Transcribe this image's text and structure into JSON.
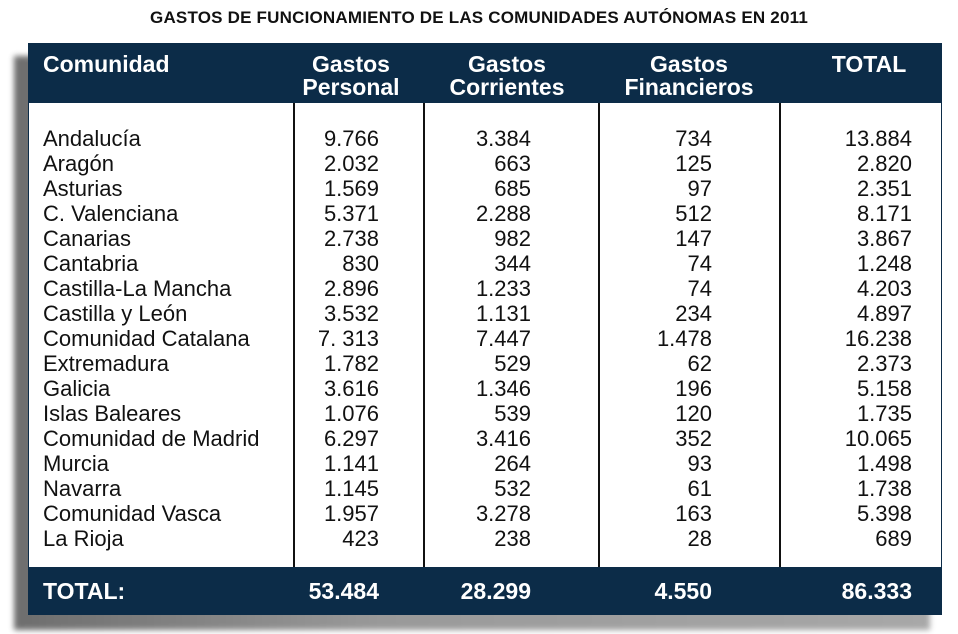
{
  "title": "GASTOS DE FUNCIONAMIENTO DE LAS COMUNIDADES AUTÓNOMAS EN 2011",
  "headers": {
    "comunidad": "Comunidad",
    "personal_1": "Gastos",
    "personal_2": "Personal",
    "corrientes_1": "Gastos",
    "corrientes_2": "Corrientes",
    "financieros_1": "Gastos",
    "financieros_2": "Financieros",
    "total": "TOTAL"
  },
  "rows": [
    {
      "name": "Andalucía",
      "personal": "9.766",
      "corrientes": "3.384",
      "financieros": "734",
      "total": "13.884"
    },
    {
      "name": "Aragón",
      "personal": "2.032",
      "corrientes": "663",
      "financieros": "125",
      "total": "2.820"
    },
    {
      "name": "Asturias",
      "personal": "1.569",
      "corrientes": "685",
      "financieros": "97",
      "total": "2.351"
    },
    {
      "name": "C. Valenciana",
      "personal": "5.371",
      "corrientes": "2.288",
      "financieros": "512",
      "total": "8.171"
    },
    {
      "name": "Canarias",
      "personal": "2.738",
      "corrientes": "982",
      "financieros": "147",
      "total": "3.867"
    },
    {
      "name": "Cantabria",
      "personal": "830",
      "corrientes": "344",
      "financieros": "74",
      "total": "1.248"
    },
    {
      "name": "Castilla-La Mancha",
      "personal": "2.896",
      "corrientes": "1.233",
      "financieros": "74",
      "total": "4.203"
    },
    {
      "name": "Castilla y León",
      "personal": "3.532",
      "corrientes": "1.131",
      "financieros": "234",
      "total": "4.897"
    },
    {
      "name": "Comunidad Catalana",
      "personal": "7. 313",
      "corrientes": "7.447",
      "financieros": "1.478",
      "total": "16.238"
    },
    {
      "name": "Extremadura",
      "personal": "1.782",
      "corrientes": "529",
      "financieros": "62",
      "total": "2.373"
    },
    {
      "name": "Galicia",
      "personal": "3.616",
      "corrientes": "1.346",
      "financieros": "196",
      "total": "5.158"
    },
    {
      "name": "Islas Baleares",
      "personal": "1.076",
      "corrientes": "539",
      "financieros": "120",
      "total": "1.735"
    },
    {
      "name": "Comunidad de Madrid",
      "personal": "6.297",
      "corrientes": "3.416",
      "financieros": "352",
      "total": "10.065"
    },
    {
      "name": "Murcia",
      "personal": "1.141",
      "corrientes": "264",
      "financieros": "93",
      "total": "1.498"
    },
    {
      "name": "Navarra",
      "personal": "1.145",
      "corrientes": "532",
      "financieros": "61",
      "total": "1.738"
    },
    {
      "name": "Comunidad Vasca",
      "personal": "1.957",
      "corrientes": "3.278",
      "financieros": "163",
      "total": "5.398"
    },
    {
      "name": "La Rioja",
      "personal": "423",
      "corrientes": "238",
      "financieros": "28",
      "total": "689"
    }
  ],
  "footer": {
    "label": "TOTAL:",
    "personal": "53.484",
    "corrientes": "28.299",
    "financieros": "4.550",
    "total": "86.333"
  },
  "colors": {
    "navy": "#0c2c48"
  }
}
